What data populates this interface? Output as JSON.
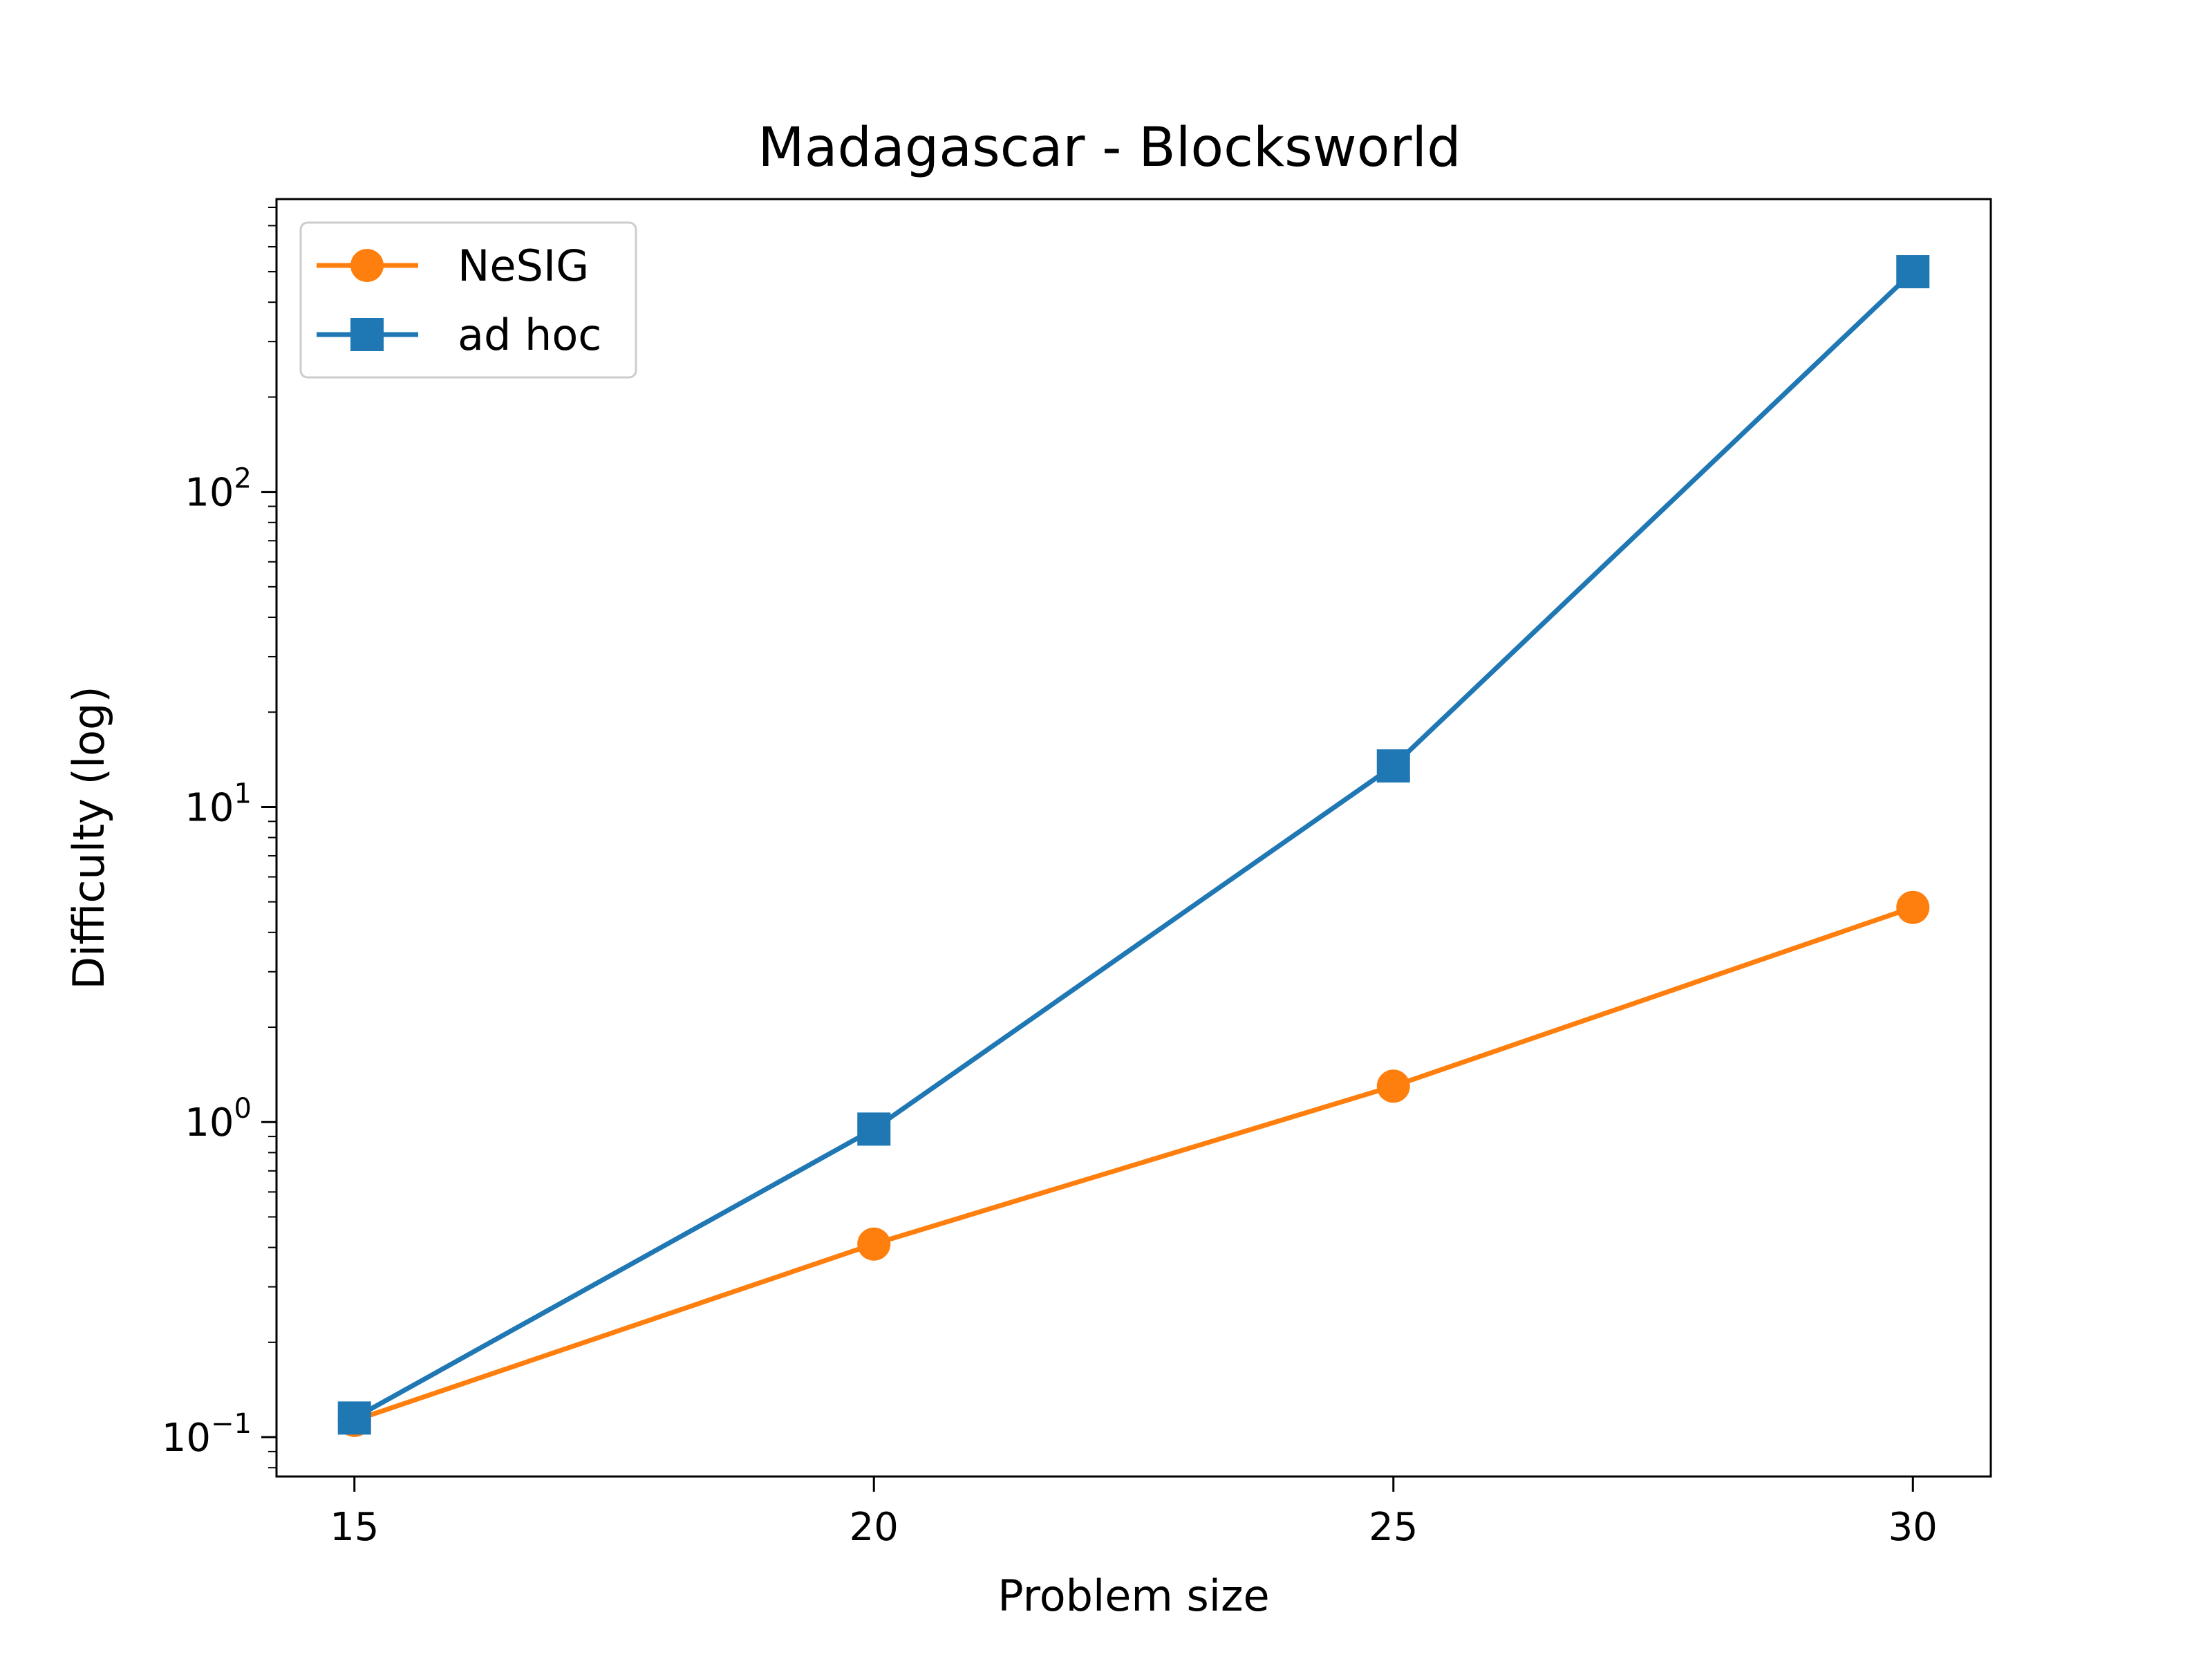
{
  "chart_data": {
    "type": "line",
    "title": "Madagascar - Blocksworld",
    "xlabel": "Problem size",
    "ylabel": "Difficulty (log)",
    "yscale": "log",
    "x": [
      15,
      20,
      25,
      30
    ],
    "xlim": [
      14.25,
      30.75
    ],
    "ylim": [
      0.075,
      850
    ],
    "xticks": [
      "15",
      "20",
      "25",
      "30"
    ],
    "yticks": [
      {
        "base": "10",
        "exp": "−1",
        "value": 0.1
      },
      {
        "base": "10",
        "exp": "0",
        "value": 1
      },
      {
        "base": "10",
        "exp": "1",
        "value": 10
      },
      {
        "base": "10",
        "exp": "2",
        "value": 100
      }
    ],
    "grid": false,
    "legend_position": "top-left",
    "series": [
      {
        "name": "NeSIG",
        "color": "#ff7f0e",
        "marker": "circle",
        "values": [
          0.113,
          0.41,
          1.3,
          4.8
        ]
      },
      {
        "name": "ad hoc",
        "color": "#1f77b4",
        "marker": "square",
        "values": [
          0.115,
          0.95,
          13.5,
          500
        ]
      }
    ]
  }
}
